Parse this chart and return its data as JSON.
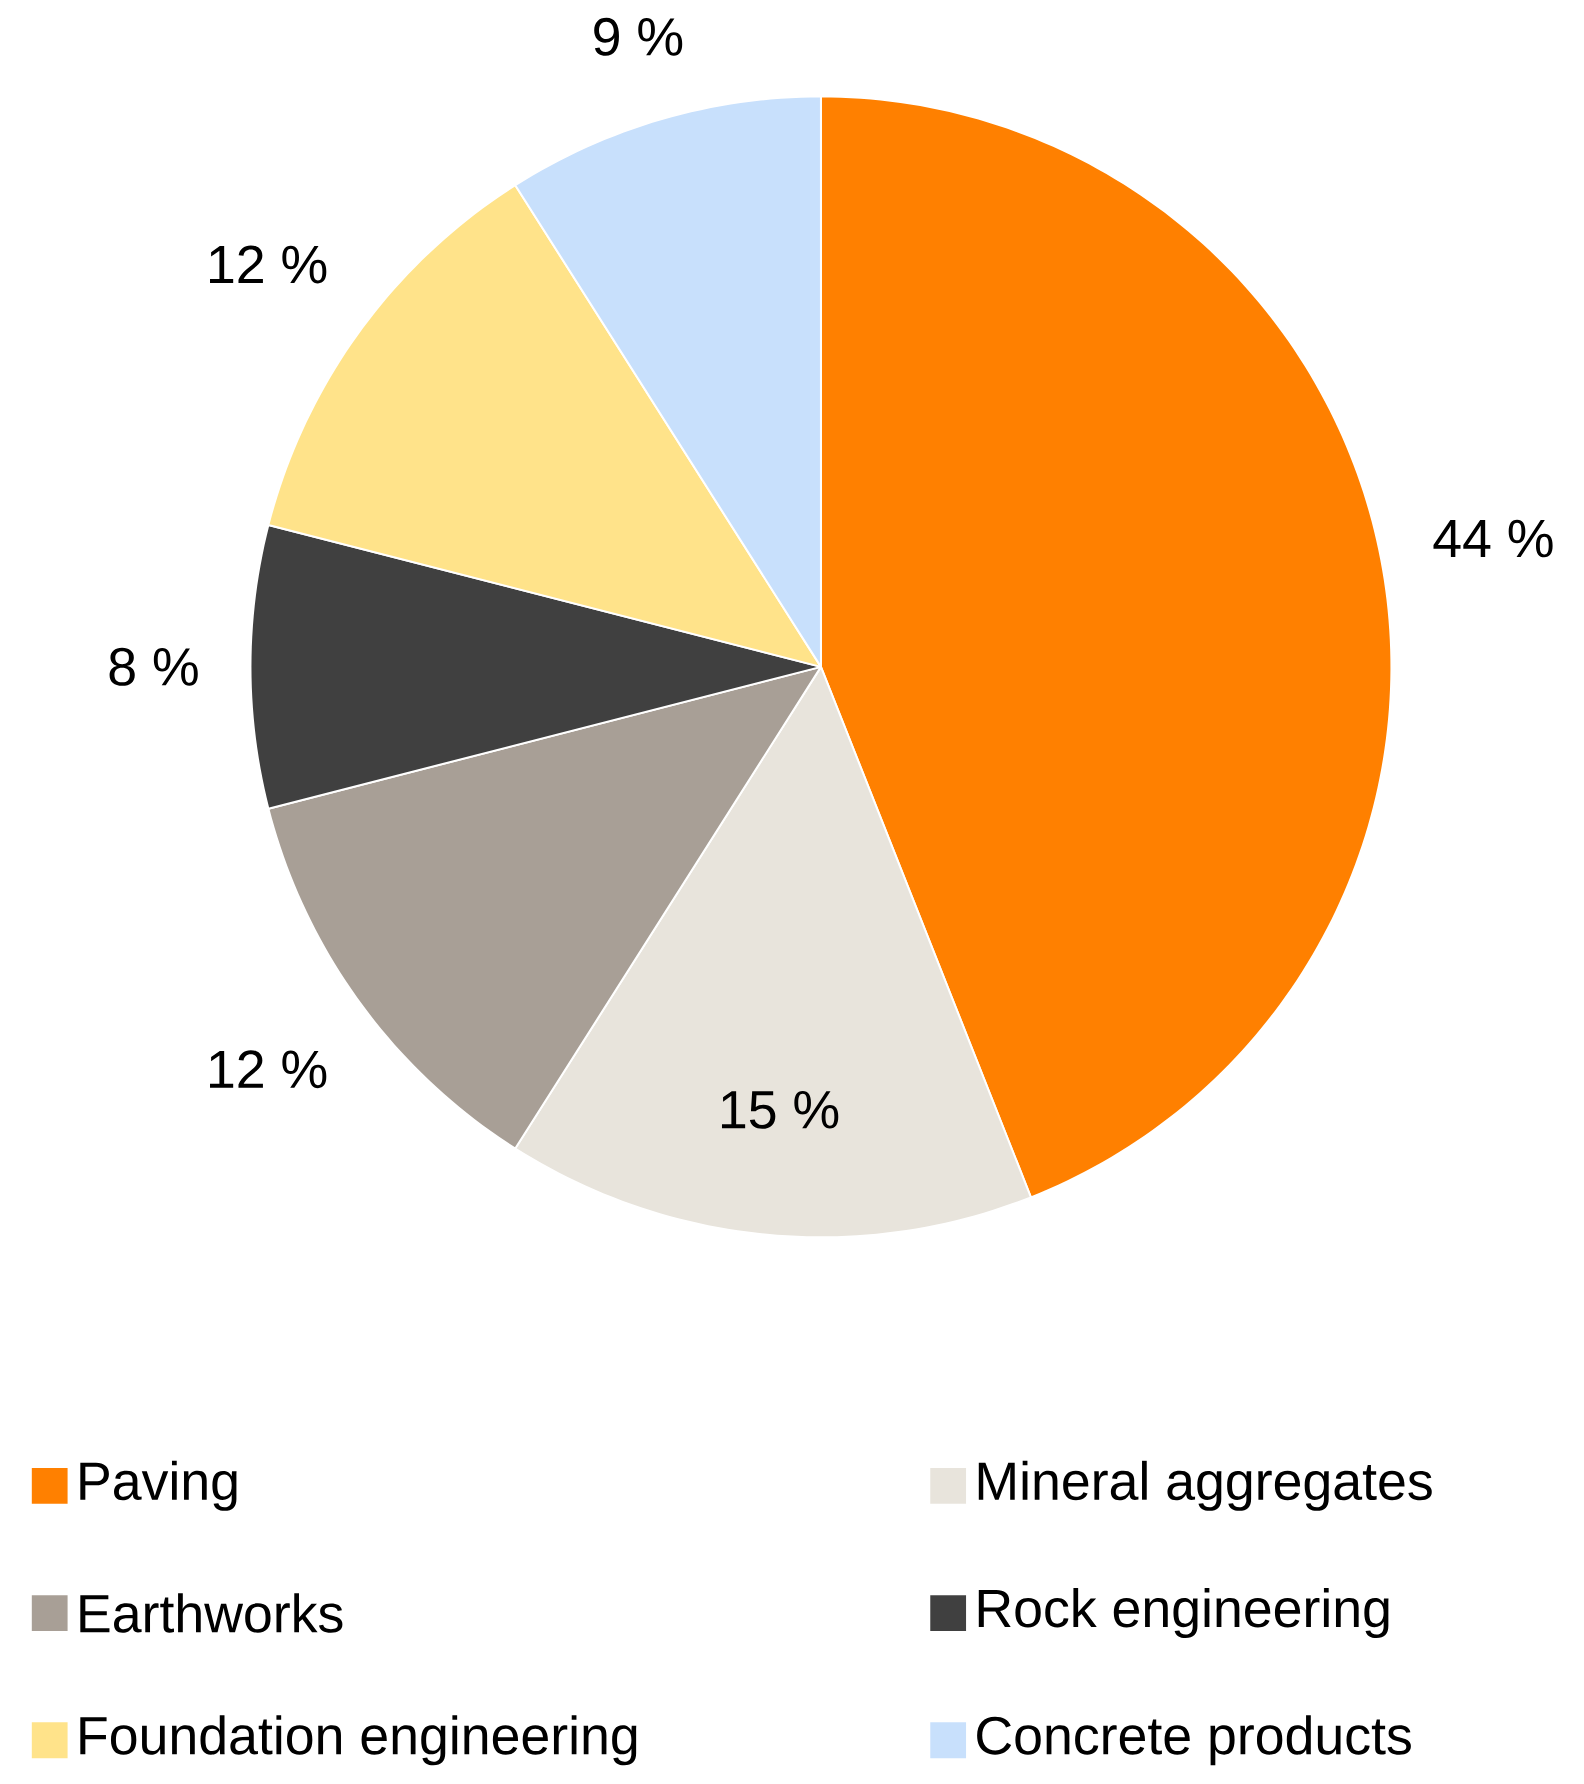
{
  "chart_data": {
    "type": "pie",
    "categories": [
      "Paving",
      "Mineral aggregates",
      "Earthworks",
      "Rock engineering",
      "Foundation engineering",
      "Concrete products"
    ],
    "values": [
      44,
      15,
      12,
      8,
      12,
      9
    ],
    "colors": [
      "#ff8000",
      "#e8e4dc",
      "#a89f96",
      "#404040",
      "#ffe38a",
      "#c8e0fc"
    ],
    "value_labels": [
      "44 %",
      "15 %",
      "12 %",
      "8 %",
      "12 %",
      "9 %"
    ],
    "legend": "bottom"
  }
}
